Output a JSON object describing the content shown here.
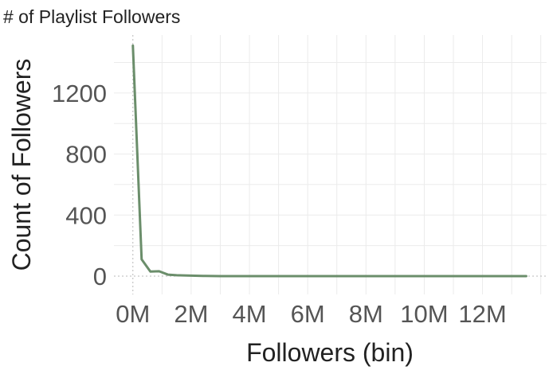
{
  "chart_data": {
    "type": "line",
    "title": "# of Playlist Followers",
    "xlabel": "Followers (bin)",
    "ylabel": "Count of Followers",
    "xlim": [
      -0.65,
      14.2
    ],
    "ylim": [
      -120,
      1580
    ],
    "x_ticks": [
      {
        "value": 0,
        "label": "0M"
      },
      {
        "value": 2,
        "label": "2M"
      },
      {
        "value": 4,
        "label": "4M"
      },
      {
        "value": 6,
        "label": "6M"
      },
      {
        "value": 8,
        "label": "8M"
      },
      {
        "value": 10,
        "label": "10M"
      },
      {
        "value": 12,
        "label": "12M"
      }
    ],
    "y_ticks": [
      {
        "value": 0,
        "label": "0"
      },
      {
        "value": 400,
        "label": "400"
      },
      {
        "value": 800,
        "label": "800"
      },
      {
        "value": 1200,
        "label": "1200"
      }
    ],
    "grid": true,
    "series": [
      {
        "color": "#6b8e6b",
        "x": [
          0,
          0.3,
          0.6,
          0.9,
          1.2,
          1.5,
          2.0,
          2.5,
          3.0,
          4.0,
          5.0,
          6.0,
          7.0,
          8.0,
          9.0,
          10.0,
          11.0,
          12.0,
          13.0,
          13.5
        ],
        "y": [
          1510,
          110,
          30,
          32,
          10,
          6,
          3,
          1,
          0,
          0,
          0,
          0,
          0,
          0,
          0,
          0,
          0,
          0,
          0,
          0
        ]
      }
    ]
  }
}
